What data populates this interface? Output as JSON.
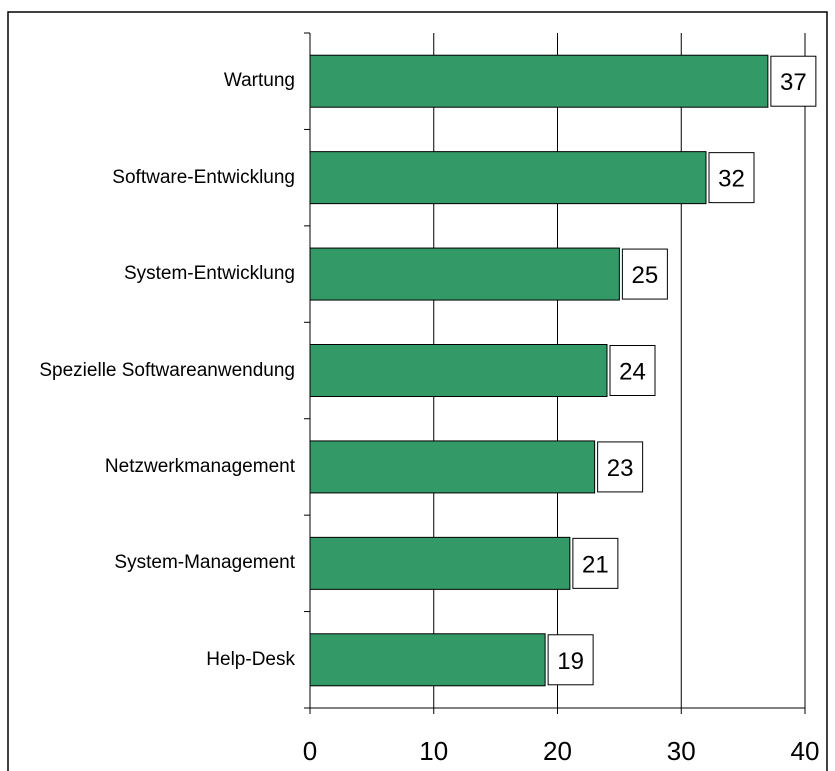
{
  "chart_data": {
    "type": "bar",
    "orientation": "horizontal",
    "categories": [
      "Wartung",
      "Software-Entwicklung",
      "System-Entwicklung",
      "Spezielle Softwareanwendung",
      "Netzwerkmanagement",
      "System-Management",
      "Help-Desk"
    ],
    "values": [
      37,
      32,
      25,
      24,
      23,
      21,
      19
    ],
    "color": "#339966",
    "xlim": [
      0,
      40
    ],
    "xticks": [
      0,
      10,
      20,
      30,
      40
    ],
    "grid": true
  }
}
